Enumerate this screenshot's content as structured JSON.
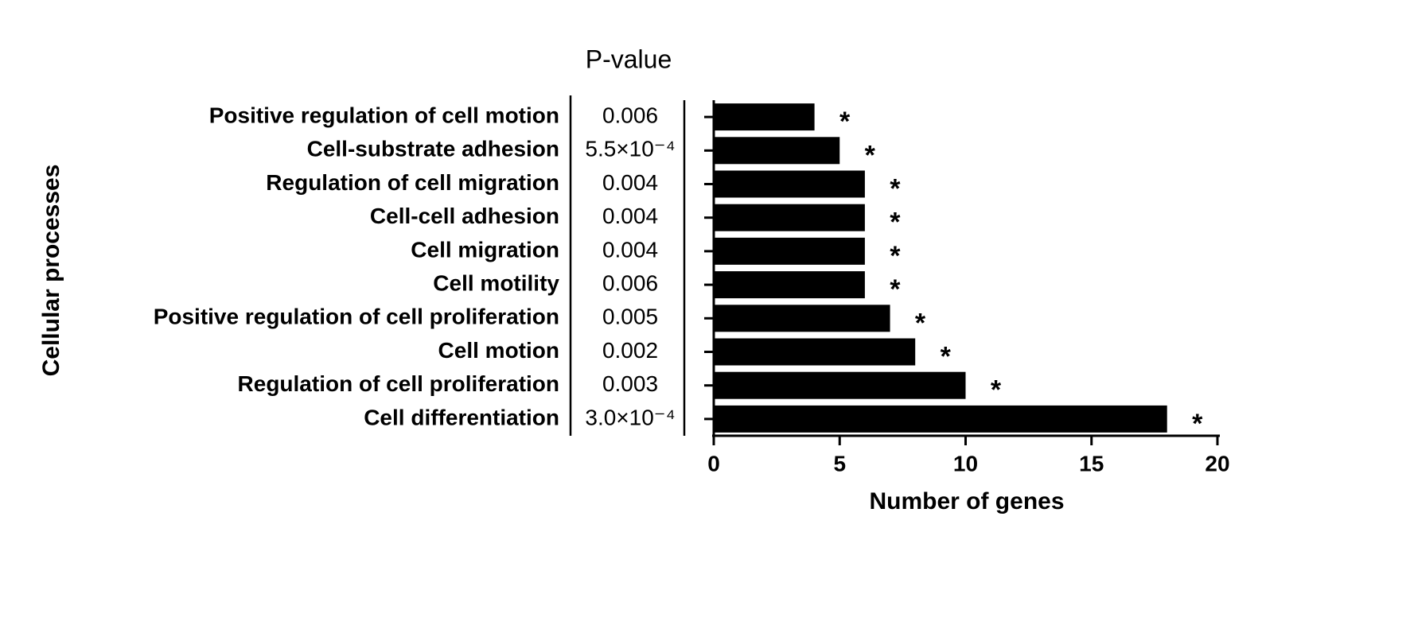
{
  "chart_data": {
    "type": "hbar",
    "column_title": "P-value",
    "xlabel": "Number of genes",
    "ylabel": "Cellular processes",
    "categories": [
      "Positive regulation of cell motion",
      "Cell-substrate adhesion",
      "Regulation of cell migration",
      "Cell-cell adhesion",
      "Cell migration",
      "Cell motility",
      "Positive regulation of cell proliferation",
      "Cell motion",
      "Regulation of cell proliferation",
      "Cell differentiation"
    ],
    "p_values": [
      "0.006",
      "5.5×10⁻⁴",
      "0.004",
      "0.004",
      "0.004",
      "0.006",
      "0.005",
      "0.002",
      "0.003",
      "3.0×10⁻⁴"
    ],
    "values": [
      4,
      5,
      6,
      6,
      6,
      6,
      7,
      8,
      10,
      18
    ],
    "bar_annotations": [
      "*",
      "*",
      "*",
      "*",
      "*",
      "*",
      "*",
      "*",
      "*",
      "*"
    ],
    "color": "#000000",
    "xlim": [
      0,
      20
    ],
    "xticks": [
      0,
      5,
      10,
      15,
      20
    ]
  }
}
